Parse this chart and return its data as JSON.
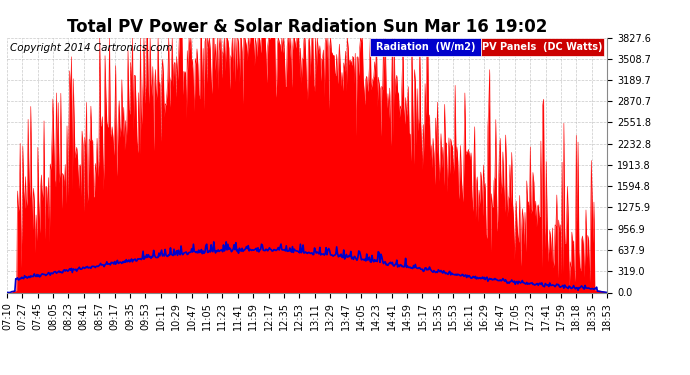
{
  "title": "Total PV Power & Solar Radiation Sun Mar 16 19:02",
  "copyright": "Copyright 2014 Cartronics.com",
  "yticks": [
    0.0,
    319.0,
    637.9,
    956.9,
    1275.9,
    1594.8,
    1913.8,
    2232.8,
    2551.8,
    2870.7,
    3189.7,
    3508.7,
    3827.6
  ],
  "ymax": 3827.6,
  "ymin": 0.0,
  "pv_color": "#ff0000",
  "radiation_color": "#0000cc",
  "background_color": "#ffffff",
  "plot_bg_color": "#ffffff",
  "grid_color": "#bbbbbb",
  "legend_radiation_bg": "#0000cc",
  "legend_pv_bg": "#cc0000",
  "xtick_labels": [
    "07:10",
    "07:27",
    "07:45",
    "08:05",
    "08:23",
    "08:41",
    "08:57",
    "09:17",
    "09:35",
    "09:53",
    "10:11",
    "10:29",
    "10:47",
    "11:05",
    "11:23",
    "11:41",
    "11:59",
    "12:17",
    "12:35",
    "12:53",
    "13:11",
    "13:29",
    "13:47",
    "14:05",
    "14:23",
    "14:41",
    "14:59",
    "15:17",
    "15:35",
    "15:53",
    "16:11",
    "16:29",
    "16:47",
    "17:05",
    "17:23",
    "17:41",
    "17:59",
    "18:18",
    "18:35",
    "18:53"
  ],
  "title_fontsize": 12,
  "tick_fontsize": 7,
  "copyright_fontsize": 7.5,
  "legend_fontsize": 7
}
